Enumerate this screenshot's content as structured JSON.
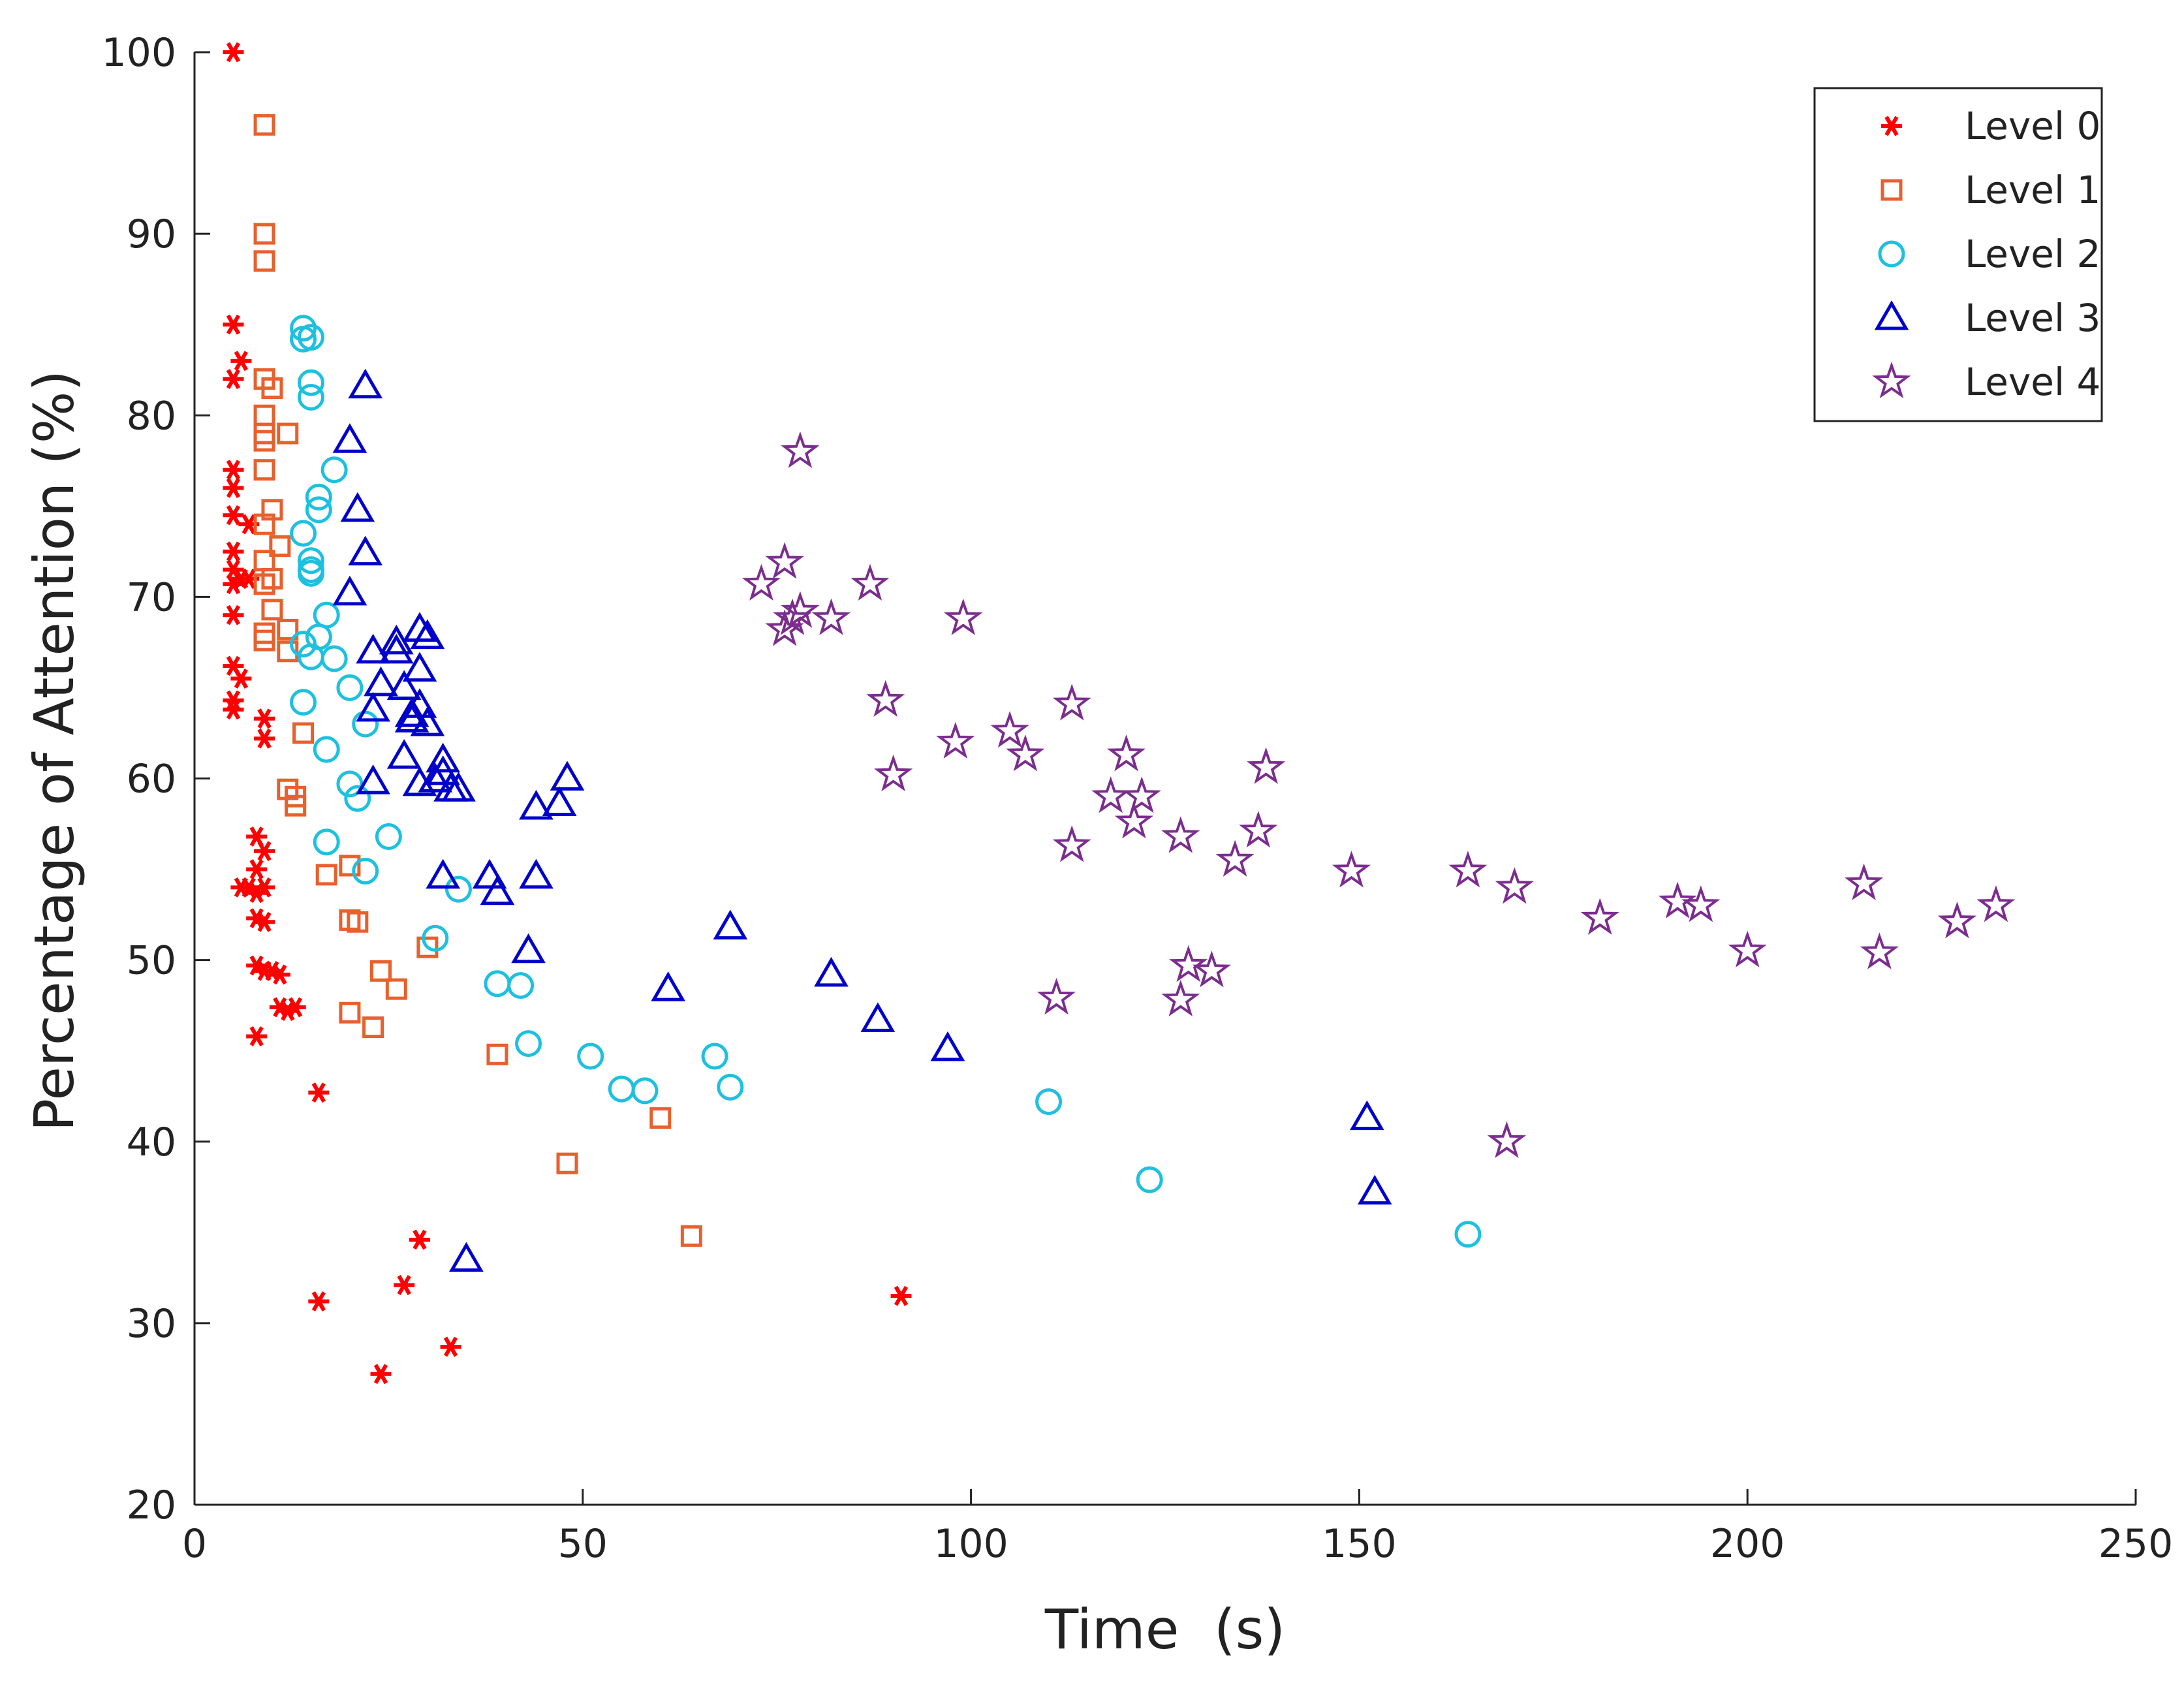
{
  "chart_data": {
    "type": "scatter",
    "title": "",
    "xlabel": "Time  (s)",
    "ylabel": "Percentage of Attention (%)",
    "xlim": [
      0,
      250
    ],
    "ylim": [
      20,
      100
    ],
    "xticks": [
      0,
      50,
      100,
      150,
      200,
      250
    ],
    "yticks": [
      20,
      30,
      40,
      50,
      60,
      70,
      80,
      90,
      100
    ],
    "grid": false,
    "legend_position": "top-right",
    "series": [
      {
        "name": "Level 0",
        "marker": "asterisk",
        "color": "#ff0000",
        "points": [
          [
            5,
            100
          ],
          [
            5,
            85
          ],
          [
            6,
            83
          ],
          [
            5,
            82
          ],
          [
            5,
            77
          ],
          [
            5,
            76
          ],
          [
            5,
            74.5
          ],
          [
            7,
            74
          ],
          [
            5,
            72.5
          ],
          [
            5,
            71.5
          ],
          [
            6,
            71
          ],
          [
            7,
            71
          ],
          [
            5,
            70.7
          ],
          [
            5,
            69
          ],
          [
            5,
            66.2
          ],
          [
            6,
            65.5
          ],
          [
            5,
            64.3
          ],
          [
            5,
            63.8
          ],
          [
            9,
            63.3
          ],
          [
            9,
            62.2
          ],
          [
            8,
            56.8
          ],
          [
            9,
            56
          ],
          [
            8,
            55
          ],
          [
            9,
            54
          ],
          [
            6,
            54
          ],
          [
            7,
            54
          ],
          [
            8,
            53.7
          ],
          [
            8,
            52.3
          ],
          [
            9,
            52.1
          ],
          [
            8,
            49.7
          ],
          [
            9,
            49.4
          ],
          [
            10,
            49.4
          ],
          [
            11,
            49.2
          ],
          [
            11,
            47.4
          ],
          [
            12,
            47.2
          ],
          [
            13,
            47.4
          ],
          [
            8,
            45.8
          ],
          [
            16,
            42.7
          ],
          [
            29,
            34.6
          ],
          [
            27,
            32.1
          ],
          [
            16,
            31.2
          ],
          [
            91,
            31.5
          ],
          [
            33,
            28.7
          ],
          [
            24,
            27.2
          ]
        ]
      },
      {
        "name": "Level 1",
        "marker": "square",
        "color": "#e8602c",
        "points": [
          [
            9,
            96
          ],
          [
            9,
            90
          ],
          [
            9,
            88.5
          ],
          [
            9,
            82
          ],
          [
            10,
            81.5
          ],
          [
            9,
            80
          ],
          [
            9,
            79
          ],
          [
            12,
            79
          ],
          [
            9,
            78.6
          ],
          [
            9,
            77
          ],
          [
            10,
            74.8
          ],
          [
            9,
            74
          ],
          [
            11,
            72.8
          ],
          [
            9,
            72
          ],
          [
            10,
            71
          ],
          [
            9,
            70.7
          ],
          [
            10,
            69.3
          ],
          [
            9,
            68
          ],
          [
            12,
            68.2
          ],
          [
            9,
            67.6
          ],
          [
            12,
            67
          ],
          [
            14,
            62.5
          ],
          [
            12,
            59.4
          ],
          [
            13,
            59
          ],
          [
            13,
            58.5
          ],
          [
            20,
            55.2
          ],
          [
            17,
            54.7
          ],
          [
            20,
            52.2
          ],
          [
            21,
            52.1
          ],
          [
            24,
            49.4
          ],
          [
            30,
            50.7
          ],
          [
            26,
            48.4
          ],
          [
            20,
            47.1
          ],
          [
            23,
            46.3
          ],
          [
            39,
            44.8
          ],
          [
            60,
            41.3
          ],
          [
            48,
            38.8
          ],
          [
            64,
            34.8
          ]
        ]
      },
      {
        "name": "Level 2",
        "marker": "circle",
        "color": "#1ec0e0",
        "points": [
          [
            14,
            84.8
          ],
          [
            14,
            84.2
          ],
          [
            15,
            84.3
          ],
          [
            15,
            81.8
          ],
          [
            15,
            81
          ],
          [
            18,
            77
          ],
          [
            16,
            75.5
          ],
          [
            16,
            74.8
          ],
          [
            14,
            73.5
          ],
          [
            15,
            72
          ],
          [
            15,
            71.5
          ],
          [
            15,
            71.3
          ],
          [
            17,
            69
          ],
          [
            16,
            67.8
          ],
          [
            14,
            67.4
          ],
          [
            15,
            66.7
          ],
          [
            18,
            66.6
          ],
          [
            20,
            65
          ],
          [
            14,
            64.2
          ],
          [
            22,
            63
          ],
          [
            17,
            61.6
          ],
          [
            20,
            59.7
          ],
          [
            21,
            58.9
          ],
          [
            25,
            56.8
          ],
          [
            17,
            56.5
          ],
          [
            22,
            54.9
          ],
          [
            34,
            53.9
          ],
          [
            31,
            51.2
          ],
          [
            39,
            48.7
          ],
          [
            42,
            48.6
          ],
          [
            43,
            45.4
          ],
          [
            51,
            44.7
          ],
          [
            67,
            44.7
          ],
          [
            55,
            42.9
          ],
          [
            58,
            42.8
          ],
          [
            69,
            43
          ],
          [
            110,
            42.2
          ],
          [
            123,
            37.9
          ],
          [
            164,
            34.9
          ]
        ]
      },
      {
        "name": "Level 3",
        "marker": "triangle",
        "color": "#0000cc",
        "points": [
          [
            22,
            81.6
          ],
          [
            20,
            78.6
          ],
          [
            21,
            74.8
          ],
          [
            22,
            72.4
          ],
          [
            20,
            70.2
          ],
          [
            30,
            67.8
          ],
          [
            29,
            68.2
          ],
          [
            26,
            67.5
          ],
          [
            26,
            67
          ],
          [
            23,
            67
          ],
          [
            29,
            66
          ],
          [
            27,
            65
          ],
          [
            24,
            65.2
          ],
          [
            29,
            64
          ],
          [
            28,
            63.5
          ],
          [
            23,
            63.8
          ],
          [
            30,
            63
          ],
          [
            28,
            63.2
          ],
          [
            27,
            61.2
          ],
          [
            32,
            61
          ],
          [
            32,
            60.3
          ],
          [
            29,
            59.7
          ],
          [
            23,
            59.8
          ],
          [
            31,
            59.9
          ],
          [
            33,
            59.4
          ],
          [
            34,
            59.4
          ],
          [
            48,
            60
          ],
          [
            47,
            58.6
          ],
          [
            44,
            58.4
          ],
          [
            32,
            54.6
          ],
          [
            38,
            54.6
          ],
          [
            44,
            54.6
          ],
          [
            39,
            53.7
          ],
          [
            69,
            51.8
          ],
          [
            43,
            50.5
          ],
          [
            82,
            49.2
          ],
          [
            61,
            48.4
          ],
          [
            88,
            46.7
          ],
          [
            97,
            45.1
          ],
          [
            151,
            41.3
          ],
          [
            152,
            37.2
          ],
          [
            35,
            33.5
          ]
        ]
      },
      {
        "name": "Level 4",
        "marker": "star",
        "color": "#7b2d8e",
        "points": [
          [
            78,
            78
          ],
          [
            73,
            70.7
          ],
          [
            76,
            71.9
          ],
          [
            87,
            70.7
          ],
          [
            76,
            68.2
          ],
          [
            77,
            68.8
          ],
          [
            78,
            69.2
          ],
          [
            82,
            68.8
          ],
          [
            99,
            68.8
          ],
          [
            89,
            64.3
          ],
          [
            113,
            64.1
          ],
          [
            105,
            62.6
          ],
          [
            98,
            62
          ],
          [
            107,
            61.3
          ],
          [
            120,
            61.3
          ],
          [
            90,
            60.2
          ],
          [
            138,
            60.6
          ],
          [
            118,
            59
          ],
          [
            122,
            59
          ],
          [
            121,
            57.6
          ],
          [
            137,
            57.1
          ],
          [
            113,
            56.3
          ],
          [
            127,
            56.8
          ],
          [
            134,
            55.5
          ],
          [
            149,
            54.9
          ],
          [
            164,
            54.9
          ],
          [
            170,
            54
          ],
          [
            215,
            54.2
          ],
          [
            191,
            53.2
          ],
          [
            194,
            53
          ],
          [
            232,
            53
          ],
          [
            181,
            52.3
          ],
          [
            227,
            52.1
          ],
          [
            200,
            50.5
          ],
          [
            217,
            50.4
          ],
          [
            128,
            49.7
          ],
          [
            131,
            49.4
          ],
          [
            111,
            47.9
          ],
          [
            127,
            47.8
          ],
          [
            169,
            40
          ]
        ]
      }
    ]
  }
}
